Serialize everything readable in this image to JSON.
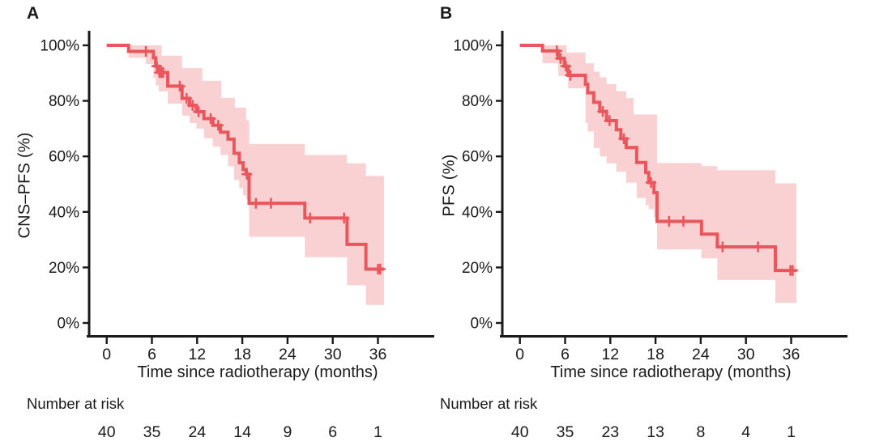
{
  "panels": [
    {
      "label": "A",
      "y_axis_title": "CNS–PFS (%)",
      "x_axis_title": "Time since radiotherapy (months)",
      "number_at_risk_label": "Number at risk"
    },
    {
      "label": "B",
      "y_axis_title": "PFS (%)",
      "x_axis_title": "Time since radiotherapy (months)",
      "number_at_risk_label": "Number at risk"
    }
  ],
  "colors": {
    "curve": "#E8575C",
    "band": "#F9D1D3",
    "axis": "#1a1a1a",
    "text": "#1a1a1a"
  },
  "chart_data": [
    {
      "type": "line",
      "subtype": "kaplan-meier-step-with-ci",
      "panel": "A",
      "ylabel": "CNS–PFS (%)",
      "xlabel": "Time since radiotherapy (months)",
      "xlim": [
        0,
        38
      ],
      "ylim": [
        0,
        100
      ],
      "x_ticks": [
        0,
        6,
        12,
        18,
        24,
        30,
        36
      ],
      "x_tick_labels": [
        "0",
        "6",
        "12",
        "18",
        "24",
        "30",
        "36"
      ],
      "y_ticks": [
        0,
        20,
        40,
        60,
        80,
        100
      ],
      "y_tick_labels": [
        "0%",
        "20%",
        "40%",
        "60%",
        "80%",
        "100%"
      ],
      "end_time": 36.8,
      "steps": [
        [
          0,
          100
        ],
        [
          2.9,
          97.8
        ],
        [
          6.2,
          95.5
        ],
        [
          6.5,
          92.5
        ],
        [
          6.9,
          90.2
        ],
        [
          8.1,
          85.3
        ],
        [
          10.0,
          80.9
        ],
        [
          11.0,
          78.4
        ],
        [
          11.9,
          76.1
        ],
        [
          12.9,
          73.6
        ],
        [
          14.1,
          71.2
        ],
        [
          15.1,
          68.7
        ],
        [
          16.1,
          66.2
        ],
        [
          16.9,
          61.1
        ],
        [
          17.6,
          57.7
        ],
        [
          18.1,
          55.3
        ],
        [
          18.5,
          53.6
        ],
        [
          18.9,
          43.1
        ],
        [
          26.3,
          37.8
        ],
        [
          31.9,
          28.3
        ],
        [
          34.4,
          19.4
        ]
      ],
      "censors": [
        [
          5.2,
          97.8
        ],
        [
          6.65,
          92.5
        ],
        [
          7.0,
          90.2
        ],
        [
          7.25,
          90.2
        ],
        [
          7.5,
          90.2
        ],
        [
          9.7,
          85.3
        ],
        [
          10.6,
          80.9
        ],
        [
          11.4,
          78.4
        ],
        [
          12.2,
          76.1
        ],
        [
          13.8,
          73.6
        ],
        [
          14.8,
          71.2
        ],
        [
          18.6,
          53.6
        ],
        [
          19.8,
          43.1
        ],
        [
          21.8,
          43.1
        ],
        [
          27.0,
          37.8
        ],
        [
          31.5,
          37.8
        ],
        [
          36.0,
          19.4
        ],
        [
          36.3,
          19.4
        ]
      ],
      "ci_upper": [
        [
          2.9,
          100
        ],
        [
          7.3,
          96.3
        ],
        [
          10.0,
          91.8
        ],
        [
          12.7,
          87.2
        ],
        [
          15.2,
          81.1
        ],
        [
          17.0,
          77.6
        ],
        [
          18.5,
          73.0
        ],
        [
          18.9,
          64.5
        ],
        [
          26.3,
          60.5
        ],
        [
          31.9,
          57.5
        ],
        [
          34.4,
          53.0
        ]
      ],
      "ci_lower": [
        [
          2.9,
          95.5
        ],
        [
          5.2,
          93.3
        ],
        [
          6.2,
          88.4
        ],
        [
          6.5,
          85.5
        ],
        [
          6.9,
          83.4
        ],
        [
          8.1,
          79.0
        ],
        [
          10.0,
          74.7
        ],
        [
          11.0,
          72.0
        ],
        [
          11.9,
          70.0
        ],
        [
          12.9,
          66.5
        ],
        [
          14.1,
          63.5
        ],
        [
          15.1,
          60.5
        ],
        [
          16.1,
          56.5
        ],
        [
          16.9,
          51.5
        ],
        [
          17.6,
          48.5
        ],
        [
          18.1,
          46.0
        ],
        [
          18.5,
          44.5
        ],
        [
          18.9,
          31.0
        ],
        [
          26.3,
          23.7
        ],
        [
          31.9,
          13.6
        ],
        [
          34.4,
          6.5
        ]
      ],
      "number_at_risk": {
        "times": [
          0,
          6,
          12,
          18,
          24,
          30,
          36
        ],
        "counts": [
          "40",
          "35",
          "24",
          "14",
          "9",
          "6",
          "1"
        ]
      }
    },
    {
      "type": "line",
      "subtype": "kaplan-meier-step-with-ci",
      "panel": "B",
      "ylabel": "PFS (%)",
      "xlabel": "Time since radiotherapy (months)",
      "xlim": [
        0,
        38
      ],
      "ylim": [
        0,
        100
      ],
      "x_ticks": [
        0,
        6,
        12,
        18,
        24,
        30,
        36
      ],
      "x_tick_labels": [
        "0",
        "6",
        "12",
        "18",
        "24",
        "30",
        "36"
      ],
      "y_ticks": [
        0,
        20,
        40,
        60,
        80,
        100
      ],
      "y_tick_labels": [
        "0%",
        "20%",
        "40%",
        "60%",
        "80%",
        "100%"
      ],
      "end_time": 36.7,
      "steps": [
        [
          0,
          100
        ],
        [
          3.0,
          98.0
        ],
        [
          5.1,
          95.3
        ],
        [
          5.9,
          92.5
        ],
        [
          6.4,
          89.2
        ],
        [
          8.7,
          86.0
        ],
        [
          9.0,
          82.9
        ],
        [
          9.8,
          79.5
        ],
        [
          10.6,
          76.2
        ],
        [
          11.5,
          72.9
        ],
        [
          12.8,
          69.6
        ],
        [
          13.4,
          66.4
        ],
        [
          14.1,
          63.2
        ],
        [
          15.5,
          57.8
        ],
        [
          16.7,
          54.2
        ],
        [
          17.1,
          50.6
        ],
        [
          17.8,
          46.9
        ],
        [
          18.2,
          36.6
        ],
        [
          24.1,
          32.0
        ],
        [
          26.2,
          27.4
        ],
        [
          33.9,
          18.9
        ]
      ],
      "censors": [
        [
          4.9,
          98.0
        ],
        [
          5.4,
          95.3
        ],
        [
          6.1,
          92.5
        ],
        [
          6.7,
          89.2
        ],
        [
          11.0,
          76.2
        ],
        [
          11.9,
          72.9
        ],
        [
          13.8,
          66.4
        ],
        [
          17.4,
          50.6
        ],
        [
          19.8,
          36.6
        ],
        [
          21.7,
          36.6
        ],
        [
          26.9,
          27.4
        ],
        [
          31.6,
          27.4
        ],
        [
          35.9,
          18.9
        ],
        [
          36.2,
          18.9
        ]
      ],
      "ci_upper": [
        [
          3.0,
          100
        ],
        [
          6.2,
          97.4
        ],
        [
          8.7,
          93.5
        ],
        [
          9.8,
          90.5
        ],
        [
          10.6,
          88.5
        ],
        [
          11.5,
          86.0
        ],
        [
          12.8,
          83.5
        ],
        [
          14.1,
          81.0
        ],
        [
          15.1,
          75.1
        ],
        [
          18.2,
          57.6
        ],
        [
          24.1,
          56.5
        ],
        [
          26.2,
          55.0
        ],
        [
          33.9,
          50.3
        ]
      ],
      "ci_lower": [
        [
          3.0,
          93.6
        ],
        [
          5.1,
          89.0
        ],
        [
          6.4,
          84.5
        ],
        [
          8.7,
          72.0
        ],
        [
          9.0,
          69.0
        ],
        [
          9.8,
          63.0
        ],
        [
          10.6,
          60.0
        ],
        [
          11.5,
          57.5
        ],
        [
          12.8,
          54.5
        ],
        [
          14.1,
          50.5
        ],
        [
          15.5,
          45.0
        ],
        [
          16.7,
          42.5
        ],
        [
          17.1,
          41.0
        ],
        [
          17.8,
          38.0
        ],
        [
          18.2,
          26.5
        ],
        [
          24.1,
          23.3
        ],
        [
          26.2,
          15.5
        ],
        [
          33.9,
          7.3
        ]
      ],
      "number_at_risk": {
        "times": [
          0,
          6,
          12,
          18,
          24,
          30,
          36
        ],
        "counts": [
          "40",
          "35",
          "23",
          "13",
          "8",
          "4",
          "1"
        ]
      }
    }
  ]
}
